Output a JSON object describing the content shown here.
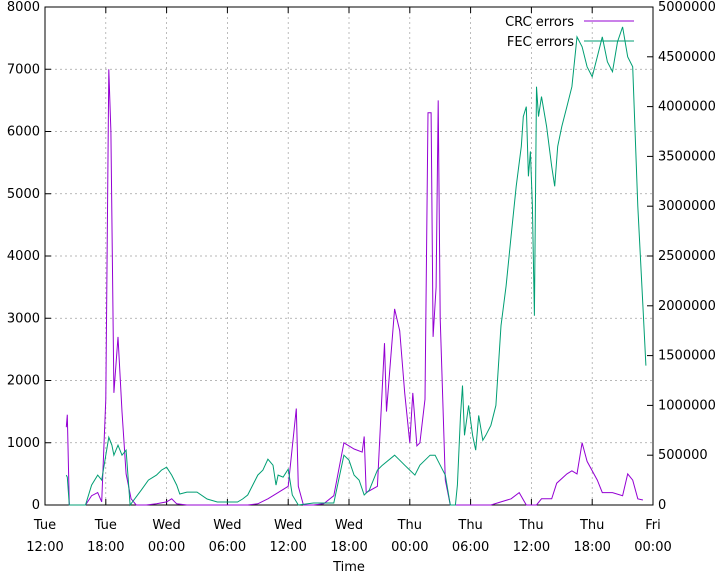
{
  "chart_data": {
    "type": "line",
    "xlabel": "Time",
    "x_range": [
      "Tue 12:00",
      "Fri 00:00"
    ],
    "x_ticks": [
      {
        "at": 0,
        "line1": "Tue",
        "line2": "12:00"
      },
      {
        "at": 6,
        "line1": "Tue",
        "line2": "18:00"
      },
      {
        "at": 12,
        "line1": "Wed",
        "line2": "00:00"
      },
      {
        "at": 18,
        "line1": "Wed",
        "line2": "06:00"
      },
      {
        "at": 24,
        "line1": "Wed",
        "line2": "12:00"
      },
      {
        "at": 30,
        "line1": "Wed",
        "line2": "18:00"
      },
      {
        "at": 36,
        "line1": "Thu",
        "line2": "00:00"
      },
      {
        "at": 42,
        "line1": "Thu",
        "line2": "06:00"
      },
      {
        "at": 48,
        "line1": "Thu",
        "line2": "12:00"
      },
      {
        "at": 54,
        "line1": "Thu",
        "line2": "18:00"
      },
      {
        "at": 60,
        "line1": "Fri",
        "line2": "00:00"
      }
    ],
    "y_left": {
      "range": [
        0,
        8000
      ],
      "ticks": [
        "0",
        "1000",
        "2000",
        "3000",
        "4000",
        "5000",
        "6000",
        "7000",
        "8000"
      ]
    },
    "y_right": {
      "range": [
        0,
        5000000
      ],
      "ticks": [
        "0",
        "500000",
        "1000000",
        "1500000",
        "2000000",
        "2500000",
        "3000000",
        "3500000",
        "4000000",
        "4500000",
        "5000000"
      ]
    },
    "grid": true,
    "legend_position": "top-right",
    "series": [
      {
        "name": "CRC errors",
        "axis": "left",
        "color": "#9400d3",
        "points": [
          [
            2.1,
            1250
          ],
          [
            2.2,
            1450
          ],
          [
            2.4,
            0
          ],
          [
            4.0,
            0
          ],
          [
            4.6,
            150
          ],
          [
            5.2,
            200
          ],
          [
            5.6,
            50
          ],
          [
            6.0,
            1700
          ],
          [
            6.3,
            7000
          ],
          [
            6.5,
            6000
          ],
          [
            6.8,
            1800
          ],
          [
            7.2,
            2700
          ],
          [
            7.6,
            1500
          ],
          [
            8.0,
            500
          ],
          [
            8.5,
            100
          ],
          [
            9.0,
            0
          ],
          [
            10.0,
            0
          ],
          [
            11.0,
            20
          ],
          [
            12.0,
            50
          ],
          [
            12.5,
            100
          ],
          [
            13.0,
            20
          ],
          [
            14.0,
            0
          ],
          [
            20.0,
            0
          ],
          [
            21.0,
            20
          ],
          [
            22.0,
            100
          ],
          [
            23.0,
            200
          ],
          [
            24.0,
            300
          ],
          [
            24.8,
            1550
          ],
          [
            25.0,
            300
          ],
          [
            25.5,
            0
          ],
          [
            26.5,
            0
          ],
          [
            27.5,
            20
          ],
          [
            28.5,
            150
          ],
          [
            29.5,
            1000
          ],
          [
            30.5,
            900
          ],
          [
            31.3,
            850
          ],
          [
            31.5,
            1100
          ],
          [
            31.7,
            200
          ],
          [
            32.8,
            300
          ],
          [
            33.5,
            2600
          ],
          [
            33.7,
            1500
          ],
          [
            34.5,
            3150
          ],
          [
            35.0,
            2800
          ],
          [
            35.5,
            1800
          ],
          [
            36.0,
            1000
          ],
          [
            36.3,
            1800
          ],
          [
            36.7,
            950
          ],
          [
            37.0,
            1000
          ],
          [
            37.5,
            1700
          ],
          [
            37.8,
            6300
          ],
          [
            38.1,
            6300
          ],
          [
            38.3,
            2700
          ],
          [
            38.6,
            3500
          ],
          [
            38.8,
            6500
          ],
          [
            39.0,
            3000
          ],
          [
            39.5,
            400
          ],
          [
            40.0,
            0
          ],
          [
            44.0,
            0
          ],
          [
            45.0,
            50
          ],
          [
            46.0,
            100
          ],
          [
            46.8,
            200
          ],
          [
            47.5,
            0
          ],
          [
            48.5,
            0
          ],
          [
            49.0,
            100
          ],
          [
            50.0,
            100
          ],
          [
            50.5,
            350
          ],
          [
            51.5,
            500
          ],
          [
            52.0,
            550
          ],
          [
            52.5,
            500
          ],
          [
            53.0,
            1000
          ],
          [
            53.5,
            700
          ],
          [
            54.5,
            400
          ],
          [
            55.0,
            200
          ],
          [
            56.0,
            200
          ],
          [
            57.0,
            150
          ],
          [
            57.5,
            500
          ],
          [
            58.0,
            400
          ],
          [
            58.5,
            100
          ],
          [
            59.0,
            80
          ]
        ]
      },
      {
        "name": "FEC errors",
        "axis": "right",
        "color": "#009e73",
        "points": [
          [
            2.1,
            300000
          ],
          [
            2.2,
            280000
          ],
          [
            2.4,
            0
          ],
          [
            4.0,
            0
          ],
          [
            4.6,
            200000
          ],
          [
            5.2,
            300000
          ],
          [
            5.6,
            250000
          ],
          [
            6.0,
            500000
          ],
          [
            6.3,
            680000
          ],
          [
            6.6,
            600000
          ],
          [
            6.8,
            500000
          ],
          [
            7.2,
            600000
          ],
          [
            7.6,
            500000
          ],
          [
            8.0,
            550000
          ],
          [
            8.4,
            0
          ],
          [
            9.5,
            150000
          ],
          [
            10.2,
            250000
          ],
          [
            11.0,
            300000
          ],
          [
            11.5,
            350000
          ],
          [
            12.0,
            380000
          ],
          [
            12.5,
            300000
          ],
          [
            13.0,
            200000
          ],
          [
            13.3,
            110000
          ],
          [
            14.0,
            130000
          ],
          [
            15.0,
            130000
          ],
          [
            16.0,
            60000
          ],
          [
            17.0,
            30000
          ],
          [
            18.0,
            30000
          ],
          [
            19.0,
            30000
          ],
          [
            19.5,
            60000
          ],
          [
            20.0,
            100000
          ],
          [
            21.0,
            300000
          ],
          [
            21.5,
            350000
          ],
          [
            22.0,
            460000
          ],
          [
            22.5,
            400000
          ],
          [
            22.8,
            200000
          ],
          [
            23.0,
            300000
          ],
          [
            23.5,
            280000
          ],
          [
            24.0,
            360000
          ],
          [
            24.4,
            100000
          ],
          [
            25.0,
            0
          ],
          [
            26.5,
            20000
          ],
          [
            27.5,
            20000
          ],
          [
            28.5,
            20000
          ],
          [
            29.5,
            500000
          ],
          [
            30.0,
            450000
          ],
          [
            30.5,
            300000
          ],
          [
            31.0,
            250000
          ],
          [
            31.5,
            100000
          ],
          [
            32.0,
            150000
          ],
          [
            32.8,
            350000
          ],
          [
            33.3,
            400000
          ],
          [
            34.5,
            500000
          ],
          [
            35.0,
            450000
          ],
          [
            35.5,
            400000
          ],
          [
            36.0,
            350000
          ],
          [
            36.5,
            300000
          ],
          [
            37.0,
            400000
          ],
          [
            37.5,
            450000
          ],
          [
            38.0,
            500000
          ],
          [
            38.5,
            500000
          ],
          [
            39.0,
            400000
          ],
          [
            39.5,
            300000
          ],
          [
            40.0,
            0
          ],
          [
            40.5,
            0
          ],
          [
            40.7,
            200000
          ],
          [
            41.0,
            900000
          ],
          [
            41.2,
            1200000
          ],
          [
            41.4,
            700000
          ],
          [
            41.8,
            1000000
          ],
          [
            42.2,
            700000
          ],
          [
            42.5,
            550000
          ],
          [
            42.8,
            900000
          ],
          [
            43.2,
            650000
          ],
          [
            43.5,
            700000
          ],
          [
            44.0,
            800000
          ],
          [
            44.5,
            1000000
          ],
          [
            45.0,
            1800000
          ],
          [
            45.5,
            2200000
          ],
          [
            46.0,
            2700000
          ],
          [
            46.5,
            3200000
          ],
          [
            47.0,
            3600000
          ],
          [
            47.2,
            3900000
          ],
          [
            47.5,
            4000000
          ],
          [
            47.7,
            3300000
          ],
          [
            47.9,
            3550000
          ],
          [
            48.1,
            3000000
          ],
          [
            48.3,
            1900000
          ],
          [
            48.5,
            4200000
          ],
          [
            48.7,
            3900000
          ],
          [
            49.0,
            4100000
          ],
          [
            49.5,
            3800000
          ],
          [
            50.0,
            3400000
          ],
          [
            50.3,
            3200000
          ],
          [
            50.6,
            3600000
          ],
          [
            51.0,
            3800000
          ],
          [
            51.5,
            4000000
          ],
          [
            52.0,
            4200000
          ],
          [
            52.5,
            4700000
          ],
          [
            53.0,
            4600000
          ],
          [
            53.5,
            4400000
          ],
          [
            54.0,
            4300000
          ],
          [
            54.5,
            4500000
          ],
          [
            55.0,
            4700000
          ],
          [
            55.5,
            4450000
          ],
          [
            56.0,
            4350000
          ],
          [
            56.5,
            4650000
          ],
          [
            57.0,
            4800000
          ],
          [
            57.5,
            4500000
          ],
          [
            58.0,
            4400000
          ],
          [
            58.5,
            3000000
          ],
          [
            59.0,
            2000000
          ],
          [
            59.3,
            1400000
          ]
        ]
      }
    ]
  }
}
